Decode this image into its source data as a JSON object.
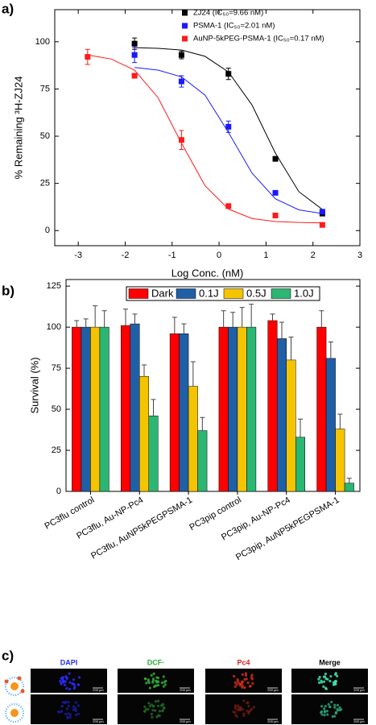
{
  "chart_data": [
    {
      "type": "scatter",
      "panel_label": "a)",
      "x_label": "Log Conc. (nM)",
      "y_label": "% Remaining ³H-ZJ24",
      "xlim": [
        -3.5,
        3
      ],
      "xticks": [
        -3,
        -2,
        -1,
        0,
        1,
        2,
        3
      ],
      "ylim": [
        -8,
        117
      ],
      "yticks": [
        0,
        25,
        50,
        75,
        100
      ],
      "grid": false,
      "legend": "top-right",
      "series": [
        {
          "name": "ZJ24 (IC₅₀=9.66 nM)",
          "color": "#000000",
          "x": [
            -1.8,
            -0.8,
            0.2,
            1.2,
            2.2
          ],
          "values": [
            99,
            93,
            83,
            38,
            9
          ],
          "errors": [
            3,
            2,
            3,
            1,
            1
          ],
          "fit": {
            "x": [
              -1.8,
              -1.3,
              -0.8,
              -0.3,
              0.2,
              0.7,
              1.2,
              1.7,
              2.2
            ],
            "values": [
              96.9,
              96.5,
              95.6,
              92.3,
              84,
              66.6,
              41,
              20.6,
              11.2
            ]
          }
        },
        {
          "name": "PSMA-1 (IC₅₀=2.01 nM)",
          "color": "#1a1aff",
          "x": [
            -1.8,
            -0.8,
            0.2,
            1.2,
            2.2
          ],
          "values": [
            93,
            79,
            55,
            20,
            10
          ],
          "errors": [
            4,
            3,
            3,
            1,
            1
          ],
          "fit": {
            "x": [
              -1.8,
              -1.3,
              -0.8,
              -0.3,
              0.2,
              0.7,
              1.2,
              1.7,
              2.2
            ],
            "values": [
              86.4,
              85,
              81.4,
              71.8,
              52,
              30.5,
              16.8,
              11,
              9
            ]
          }
        },
        {
          "name": "AuNP-5kPEG-PSMA-1 (IC₅₀=0.17 nM)",
          "color": "#ff1a1a",
          "x": [
            -2.8,
            -1.8,
            -0.8,
            0.2,
            1.2,
            2.2
          ],
          "values": [
            92,
            82,
            48,
            13,
            8,
            3
          ],
          "errors": [
            4,
            1,
            5,
            1,
            1,
            1
          ],
          "fit": {
            "x": [
              -2.8,
              -2.3,
              -1.8,
              -1.3,
              -0.8,
              -0.3,
              0.2,
              0.7,
              1.2,
              1.7,
              2.2
            ],
            "values": [
              93,
              90.9,
              85,
              70.4,
              46.3,
              23.8,
              11.4,
              6.4,
              4.8,
              4.3,
              4.1
            ]
          }
        }
      ]
    },
    {
      "type": "bar",
      "panel_label": "b)",
      "y_label": "Survival (%)",
      "ylim": [
        0,
        129
      ],
      "yticks": [
        0,
        25,
        50,
        75,
        100,
        125
      ],
      "grid": false,
      "legend": "top",
      "categories": [
        "PC3flu control",
        "PC3flu, Au-NP-Pc4",
        "PC3flu, AuNP5kPEGPSMA-1",
        "PC3pip control",
        "PC3pip, Au-NP-Pc4",
        "PC3pip, AuNP5kPEGPSMA-1"
      ],
      "series": [
        {
          "name": "Dark",
          "color": "#ff0000",
          "values": [
            100,
            101,
            96,
            100,
            104,
            100
          ],
          "errors": [
            4,
            10,
            10,
            10,
            4,
            10
          ]
        },
        {
          "name": "0.1J",
          "color": "#1f5fa6",
          "values": [
            100,
            102,
            96,
            100,
            93,
            81
          ],
          "errors": [
            5,
            6,
            6,
            9,
            10,
            10
          ]
        },
        {
          "name": "0.5J",
          "color": "#f5c400",
          "values": [
            100,
            70,
            64,
            100,
            80,
            38
          ],
          "errors": [
            13,
            7,
            15,
            12,
            14,
            9
          ]
        },
        {
          "name": "1.0J",
          "color": "#2bb673",
          "values": [
            100,
            46,
            37,
            100,
            33,
            5
          ],
          "errors": [
            10,
            10,
            8,
            14,
            11,
            3
          ]
        }
      ]
    }
  ],
  "microscopy": {
    "panel_label": "c)",
    "columns": [
      "DAPI",
      "DCF·",
      "Pc4",
      "Merge"
    ],
    "scale_bar": "200 μm"
  }
}
